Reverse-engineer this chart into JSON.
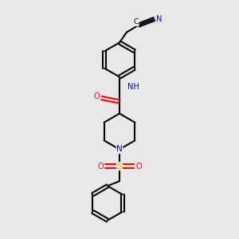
{
  "bg_color": "#e8e8e8",
  "bond_color": "#000000",
  "atom_colors": {
    "N": "#0000ff",
    "O": "#ff0000",
    "S": "#cccc00",
    "C": "#000000"
  },
  "figsize": [
    3.0,
    3.0
  ],
  "dpi": 100,
  "xlim": [
    0,
    10
  ],
  "ylim": [
    0,
    10
  ]
}
